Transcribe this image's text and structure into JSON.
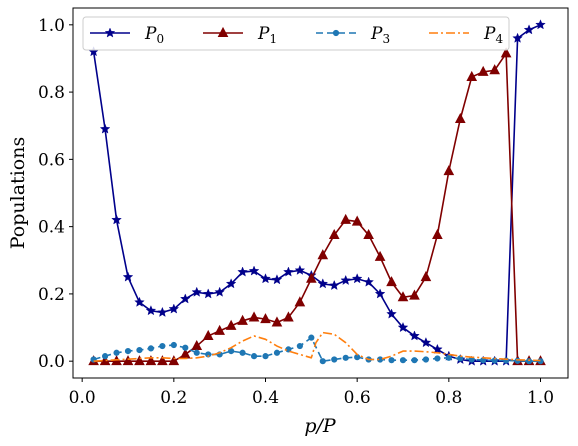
{
  "chart_data": {
    "type": "line",
    "xlabel": "p/P",
    "ylabel": "Populations",
    "xlim": [
      -0.02,
      1.06
    ],
    "ylim": [
      -0.05,
      1.05
    ],
    "xticks": [
      0.0,
      0.2,
      0.4,
      0.6,
      0.8,
      1.0
    ],
    "xtick_labels": [
      "0.0",
      "0.2",
      "0.4",
      "0.6",
      "0.8",
      "1.0"
    ],
    "yticks": [
      0.0,
      0.2,
      0.4,
      0.6,
      0.8,
      1.0
    ],
    "ytick_labels": [
      "0.0",
      "0.2",
      "0.4",
      "0.6",
      "0.8",
      "1.0"
    ],
    "grid": false,
    "legend_position": "top",
    "series": [
      {
        "name": "P0",
        "color": "#00008b",
        "line_style": "solid",
        "marker": "star",
        "x": [
          0.025,
          0.05,
          0.075,
          0.1,
          0.125,
          0.15,
          0.175,
          0.2,
          0.225,
          0.25,
          0.275,
          0.3,
          0.325,
          0.35,
          0.375,
          0.4,
          0.425,
          0.45,
          0.475,
          0.5,
          0.525,
          0.55,
          0.575,
          0.6,
          0.625,
          0.65,
          0.675,
          0.7,
          0.725,
          0.75,
          0.775,
          0.8,
          0.825,
          0.85,
          0.875,
          0.9,
          0.925,
          0.95,
          0.975,
          1.0
        ],
        "values": [
          0.92,
          0.69,
          0.42,
          0.25,
          0.175,
          0.15,
          0.145,
          0.155,
          0.185,
          0.205,
          0.2,
          0.205,
          0.23,
          0.265,
          0.268,
          0.245,
          0.242,
          0.265,
          0.27,
          0.255,
          0.23,
          0.225,
          0.24,
          0.245,
          0.235,
          0.2,
          0.14,
          0.1,
          0.075,
          0.055,
          0.035,
          0.015,
          0.005,
          0.0,
          0.0,
          0.0,
          0.0,
          0.96,
          0.985,
          1.0
        ]
      },
      {
        "name": "P1",
        "color": "#800000",
        "line_style": "solid",
        "marker": "triangle",
        "x": [
          0.025,
          0.05,
          0.075,
          0.1,
          0.125,
          0.15,
          0.175,
          0.2,
          0.225,
          0.25,
          0.275,
          0.3,
          0.325,
          0.35,
          0.375,
          0.4,
          0.425,
          0.45,
          0.475,
          0.5,
          0.525,
          0.55,
          0.575,
          0.6,
          0.625,
          0.65,
          0.675,
          0.7,
          0.725,
          0.75,
          0.775,
          0.8,
          0.825,
          0.85,
          0.875,
          0.9,
          0.925,
          0.95,
          0.975,
          1.0
        ],
        "values": [
          0.0,
          0.0,
          0.0,
          0.0,
          0.0,
          0.0,
          0.0,
          0.0,
          0.02,
          0.045,
          0.075,
          0.09,
          0.105,
          0.12,
          0.13,
          0.125,
          0.115,
          0.13,
          0.175,
          0.245,
          0.315,
          0.375,
          0.42,
          0.415,
          0.375,
          0.31,
          0.235,
          0.19,
          0.195,
          0.25,
          0.375,
          0.565,
          0.72,
          0.845,
          0.86,
          0.865,
          0.915,
          0.0,
          0.0,
          0.0
        ]
      },
      {
        "name": "P3",
        "color": "#1f77b4",
        "line_style": "dashed",
        "marker": "circle",
        "x": [
          0.025,
          0.05,
          0.075,
          0.1,
          0.125,
          0.15,
          0.175,
          0.2,
          0.225,
          0.25,
          0.275,
          0.3,
          0.325,
          0.35,
          0.375,
          0.4,
          0.425,
          0.45,
          0.475,
          0.5,
          0.525,
          0.55,
          0.575,
          0.6,
          0.625,
          0.65,
          0.675,
          0.7,
          0.725,
          0.75,
          0.775,
          0.8,
          0.825,
          0.85,
          0.875,
          0.9,
          0.925,
          0.95,
          0.975,
          1.0
        ],
        "values": [
          0.005,
          0.015,
          0.025,
          0.03,
          0.033,
          0.038,
          0.045,
          0.048,
          0.04,
          0.025,
          0.02,
          0.02,
          0.03,
          0.025,
          0.015,
          0.015,
          0.025,
          0.035,
          0.045,
          0.07,
          0.0,
          0.005,
          0.01,
          0.012,
          0.005,
          0.005,
          0.003,
          0.003,
          0.003,
          0.005,
          0.008,
          0.01,
          0.008,
          0.005,
          0.003,
          0.002,
          0.002,
          0.001,
          0.0,
          0.0
        ]
      },
      {
        "name": "P4",
        "color": "#ff7f0e",
        "line_style": "dashdot",
        "marker": "none",
        "x": [
          0.025,
          0.05,
          0.075,
          0.1,
          0.125,
          0.15,
          0.175,
          0.2,
          0.225,
          0.25,
          0.275,
          0.3,
          0.325,
          0.35,
          0.375,
          0.4,
          0.425,
          0.45,
          0.475,
          0.5,
          0.51,
          0.525,
          0.55,
          0.575,
          0.6,
          0.625,
          0.65,
          0.675,
          0.7,
          0.725,
          0.75,
          0.775,
          0.8,
          0.825,
          0.85,
          0.875,
          0.9,
          0.925,
          0.95,
          0.975,
          1.0
        ],
        "values": [
          0.0,
          0.002,
          0.004,
          0.006,
          0.008,
          0.01,
          0.01,
          0.008,
          0.008,
          0.01,
          0.015,
          0.025,
          0.04,
          0.06,
          0.075,
          0.065,
          0.045,
          0.03,
          0.02,
          0.01,
          0.055,
          0.085,
          0.08,
          0.055,
          0.02,
          0.005,
          0.005,
          0.015,
          0.03,
          0.03,
          0.028,
          0.025,
          0.02,
          0.015,
          0.012,
          0.01,
          0.008,
          0.006,
          0.004,
          0.003,
          0.002
        ]
      }
    ]
  }
}
